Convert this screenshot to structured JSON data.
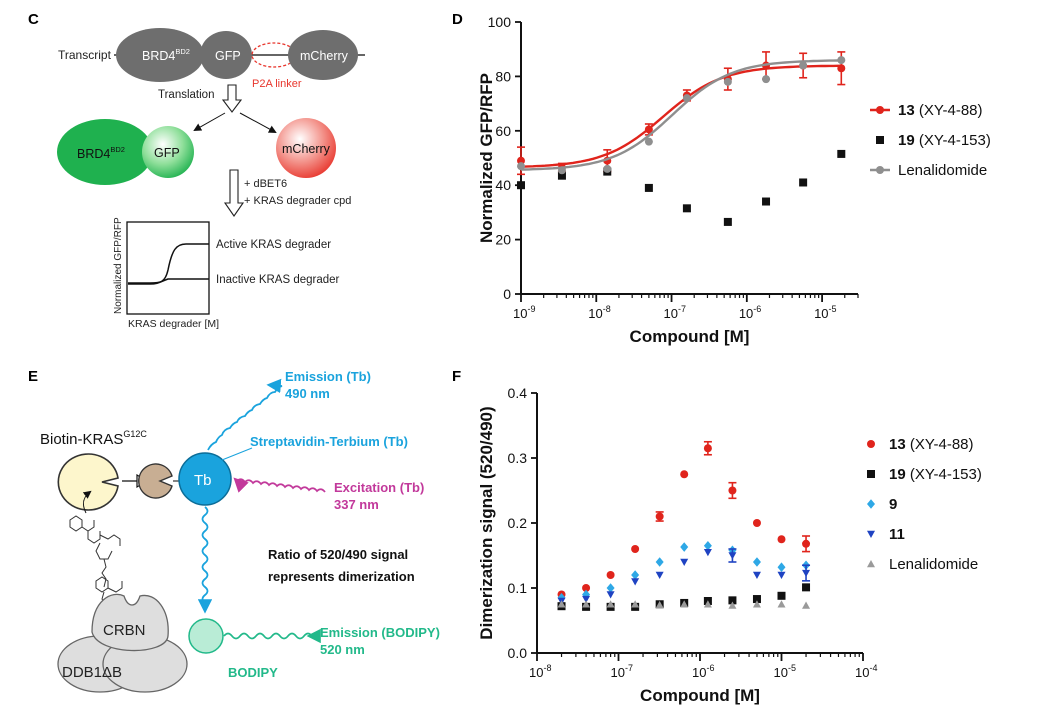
{
  "panels": {
    "c": {
      "letter": "C",
      "transcript_label": "Transcript",
      "brd4_main": "BRD4",
      "brd4_sup": "BD2",
      "gfp": "GFP",
      "mcherry": "mCherry",
      "p2a": "P2A linker",
      "translation": "Translation",
      "treat1": "+ dBET6",
      "treat2": "+ KRAS degrader cpd",
      "inset_ylabel": "Normalized GFP/RFP",
      "inset_xlabel": "KRAS degrader [M]",
      "active": "Active KRAS degrader",
      "inactive": "Inactive KRAS degrader",
      "colors": {
        "gray": "#6e6e6e",
        "green": "#1fb14f",
        "red": "#e8362d"
      }
    },
    "d": {
      "letter": "D"
    },
    "e": {
      "letter": "E",
      "biotin_main": "Biotin-KRAS",
      "biotin_sup": "G12C",
      "tb": "Tb",
      "emission_tb_1": "Emission (Tb)",
      "emission_tb_2": "490 nm",
      "strep": "Streptavidin-Terbium (Tb)",
      "excitation_1": "Excitation (Tb)",
      "excitation_2": "337 nm",
      "ratio_1": "Ratio of 520/490 signal",
      "ratio_2": "represents dimerization",
      "crbn": "CRBN",
      "ddb1": "DDB1ΔB",
      "bodipy": "BODIPY",
      "emission_bod_1": "Emission (BODIPY)",
      "emission_bod_2": "520 nm",
      "colors": {
        "blue": "#1aa3dd",
        "magenta": "#c2399b",
        "teal": "#22b98a",
        "yellow": "#fdf6cc"
      }
    },
    "f": {
      "letter": "F"
    }
  },
  "chart_data": [
    {
      "panel": "D",
      "type": "scatter",
      "xlabel": "Compound [M]",
      "ylabel": "Normalized GFP/RFP",
      "xscale": "log",
      "xlim": [
        1e-09,
        3e-05
      ],
      "ylim": [
        0,
        100
      ],
      "yticks": [
        0,
        20,
        40,
        60,
        80,
        100
      ],
      "xticks": [
        {
          "value": 1e-09,
          "base": "10",
          "exp": "-9"
        },
        {
          "value": 1e-08,
          "base": "10",
          "exp": "-8"
        },
        {
          "value": 1e-07,
          "base": "10",
          "exp": "-7"
        },
        {
          "value": 1e-06,
          "base": "10",
          "exp": "-6"
        },
        {
          "value": 1e-05,
          "base": "10",
          "exp": "-5"
        }
      ],
      "legend_position": "right",
      "series": [
        {
          "name": "13",
          "detail": "(XY-4-88)",
          "color": "#e0241c",
          "marker": "circle",
          "fit": true,
          "x": [
            1e-09,
            3.5e-09,
            1.4e-08,
            5e-08,
            1.6e-07,
            5.6e-07,
            1.8e-06,
            5.6e-06,
            1.8e-05
          ],
          "y": [
            49,
            46.5,
            49,
            60.5,
            73,
            79,
            84,
            84,
            83
          ],
          "err": [
            5,
            1.5,
            4,
            2,
            2,
            4,
            5,
            4.5,
            6
          ]
        },
        {
          "name": "19",
          "detail": "(XY-4-153)",
          "color": "#111111",
          "marker": "square",
          "fit": false,
          "x": [
            1e-09,
            3.5e-09,
            1.4e-08,
            5e-08,
            1.6e-07,
            5.6e-07,
            1.8e-06,
            5.6e-06,
            1.8e-05
          ],
          "y": [
            40,
            43.5,
            45,
            39,
            31.5,
            26.5,
            34,
            41,
            51.5
          ],
          "err": []
        },
        {
          "name": "Lenalidomide",
          "detail": "",
          "color": "#8f8f8f",
          "marker": "circle",
          "fit": true,
          "x": [
            1e-09,
            3.5e-09,
            1.4e-08,
            5e-08,
            1.6e-07,
            5.6e-07,
            1.8e-06,
            5.6e-06,
            1.8e-05
          ],
          "y": [
            47,
            45.5,
            46,
            56,
            72,
            78,
            79,
            84,
            86
          ],
          "err": []
        }
      ]
    },
    {
      "panel": "F",
      "type": "scatter",
      "xlabel": "Compound [M]",
      "ylabel": "Dimerization signal (520/490)",
      "xscale": "log",
      "xlim": [
        1e-08,
        0.0001
      ],
      "ylim": [
        0,
        0.4
      ],
      "yticks": [
        0.0,
        0.1,
        0.2,
        0.3,
        0.4
      ],
      "ytick_labels": [
        "0.0",
        "0.1",
        "0.2",
        "0.3",
        "0.4"
      ],
      "xticks": [
        {
          "value": 1e-08,
          "base": "10",
          "exp": "-8"
        },
        {
          "value": 1e-07,
          "base": "10",
          "exp": "-7"
        },
        {
          "value": 1e-06,
          "base": "10",
          "exp": "-6"
        },
        {
          "value": 1e-05,
          "base": "10",
          "exp": "-5"
        },
        {
          "value": 0.0001,
          "base": "10",
          "exp": "-4"
        }
      ],
      "legend_position": "right",
      "series": [
        {
          "name": "13",
          "detail": "(XY-4-88)",
          "color": "#e0241c",
          "marker": "circle",
          "x": [
            2e-08,
            4e-08,
            8e-08,
            1.6e-07,
            3.2e-07,
            6.4e-07,
            1.25e-06,
            2.5e-06,
            5e-06,
            1e-05,
            2e-05
          ],
          "y": [
            0.09,
            0.1,
            0.12,
            0.16,
            0.21,
            0.275,
            0.315,
            0.25,
            0.2,
            0.175,
            0.168
          ],
          "err": [
            0,
            0,
            0,
            0,
            0.007,
            0,
            0.01,
            0.012,
            0,
            0,
            0.012
          ]
        },
        {
          "name": "19",
          "detail": "(XY-4-153)",
          "color": "#111111",
          "marker": "square",
          "x": [
            2e-08,
            4e-08,
            8e-08,
            1.6e-07,
            3.2e-07,
            6.4e-07,
            1.25e-06,
            2.5e-06,
            5e-06,
            1e-05,
            2e-05
          ],
          "y": [
            0.072,
            0.071,
            0.071,
            0.071,
            0.075,
            0.077,
            0.08,
            0.081,
            0.083,
            0.088,
            0.101
          ],
          "err": []
        },
        {
          "name": "9",
          "detail": "",
          "color": "#2ea8e6",
          "marker": "diamond",
          "x": [
            2e-08,
            4e-08,
            8e-08,
            1.6e-07,
            3.2e-07,
            6.4e-07,
            1.25e-06,
            2.5e-06,
            5e-06,
            1e-05,
            2e-05
          ],
          "y": [
            0.085,
            0.09,
            0.1,
            0.12,
            0.14,
            0.163,
            0.165,
            0.158,
            0.14,
            0.132,
            0.135
          ],
          "err": []
        },
        {
          "name": "11",
          "detail": "",
          "color": "#1f43c2",
          "marker": "triangle-down",
          "x": [
            2e-08,
            4e-08,
            8e-08,
            1.6e-07,
            3.2e-07,
            6.4e-07,
            1.25e-06,
            2.5e-06,
            5e-06,
            1e-05,
            2e-05
          ],
          "y": [
            0.08,
            0.083,
            0.09,
            0.11,
            0.12,
            0.14,
            0.155,
            0.15,
            0.12,
            0.12,
            0.123
          ],
          "err": [
            0,
            0,
            0,
            0,
            0,
            0,
            0,
            0.01,
            0,
            0,
            0.012
          ]
        },
        {
          "name": "Lenalidomide",
          "detail": "",
          "color": "#9a9a9a",
          "marker": "triangle-up",
          "x": [
            2e-08,
            4e-08,
            8e-08,
            1.6e-07,
            3.2e-07,
            6.4e-07,
            1.25e-06,
            2.5e-06,
            5e-06,
            1e-05,
            2e-05
          ],
          "y": [
            0.075,
            0.075,
            0.075,
            0.075,
            0.074,
            0.075,
            0.075,
            0.073,
            0.075,
            0.075,
            0.073
          ],
          "err": []
        }
      ]
    }
  ]
}
